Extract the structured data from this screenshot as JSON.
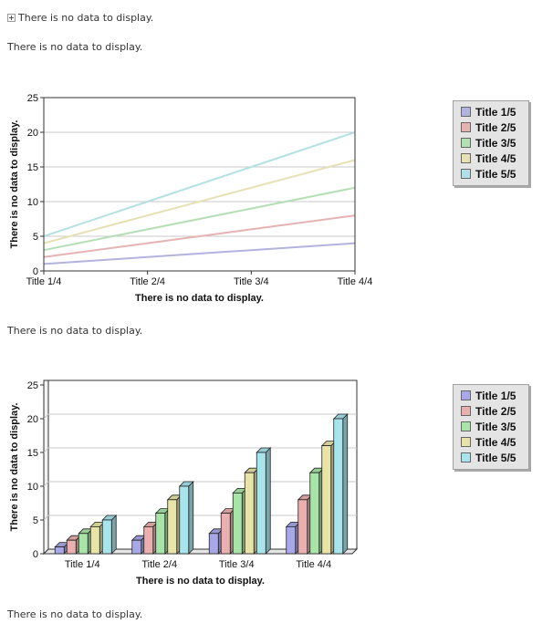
{
  "messages": {
    "top_toggle": "There is no data to display.",
    "line1": "There is no data to display.",
    "line2": "There is no data to display.",
    "line3": "There is no data to display."
  },
  "colors": {
    "line_series": [
      "#b3b3e0",
      "#e6b3b3",
      "#b3e0b3",
      "#e6e0b3",
      "#b3e0e6"
    ],
    "bar_series": [
      "#a8a8e8",
      "#eab0b0",
      "#a8e4a8",
      "#e8e4a8",
      "#a8e4ec"
    ]
  },
  "icons": {
    "toggle": "plus-box-icon"
  },
  "chart_data": [
    {
      "type": "line",
      "categories": [
        "Title 1/4",
        "Title 2/4",
        "Title 3/4",
        "Title 4/4"
      ],
      "series": [
        {
          "name": "Title 1/5",
          "values": [
            1,
            2,
            3,
            4
          ]
        },
        {
          "name": "Title 2/5",
          "values": [
            2,
            4,
            6,
            8
          ]
        },
        {
          "name": "Title 3/5",
          "values": [
            3,
            6,
            9,
            12
          ]
        },
        {
          "name": "Title 4/5",
          "values": [
            4,
            8,
            12,
            16
          ]
        },
        {
          "name": "Title 5/5",
          "values": [
            5,
            10,
            15,
            20
          ]
        }
      ],
      "xlabel": "There is no data to display.",
      "ylabel": "There is no data to display.",
      "ylim": [
        0,
        25
      ],
      "yticks": [
        0,
        5,
        10,
        15,
        20,
        25
      ],
      "grid": true,
      "legend": "right"
    },
    {
      "type": "bar",
      "categories": [
        "Title 1/4",
        "Title 2/4",
        "Title 3/4",
        "Title 4/4"
      ],
      "series": [
        {
          "name": "Title 1/5",
          "values": [
            1,
            2,
            3,
            4
          ]
        },
        {
          "name": "Title 2/5",
          "values": [
            2,
            4,
            6,
            8
          ]
        },
        {
          "name": "Title 3/5",
          "values": [
            3,
            6,
            9,
            12
          ]
        },
        {
          "name": "Title 4/5",
          "values": [
            4,
            8,
            12,
            16
          ]
        },
        {
          "name": "Title 5/5",
          "values": [
            5,
            10,
            15,
            20
          ]
        }
      ],
      "xlabel": "There is no data to display.",
      "ylabel": "There is no data to display.",
      "ylim": [
        0,
        25
      ],
      "yticks": [
        0,
        5,
        10,
        15,
        20,
        25
      ],
      "grid": true,
      "legend": "right"
    }
  ]
}
